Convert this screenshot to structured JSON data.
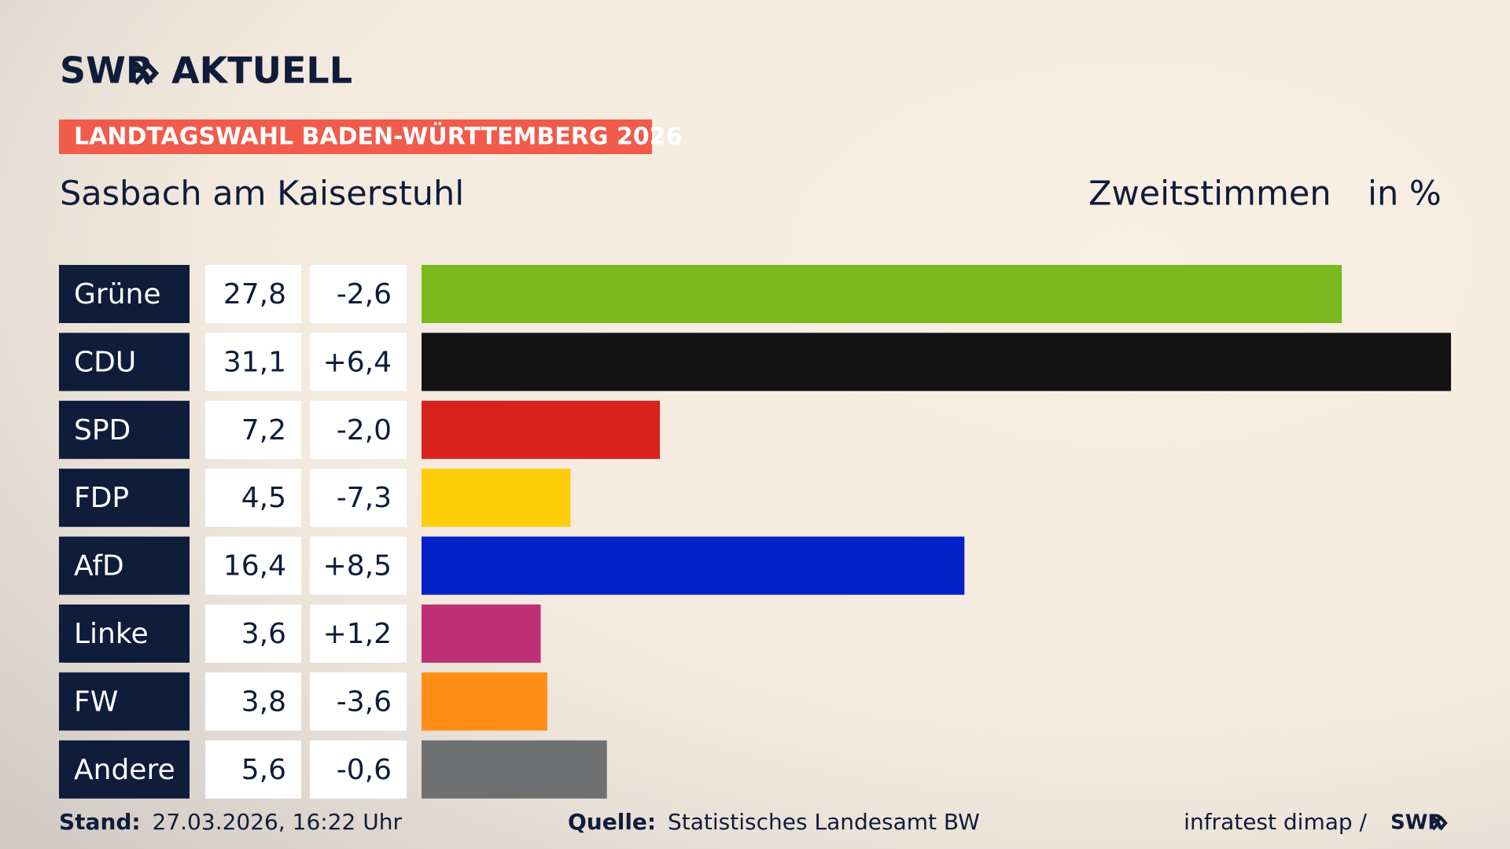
{
  "header": {
    "logo_left": "SWR",
    "logo_right": "AKTUELL",
    "banner": "LANDTAGSWAHL BADEN-WÜRTTEMBERG 2026",
    "location": "Sasbach am Kaiserstuhl"
  },
  "chart_data": {
    "type": "bar",
    "orientation": "horizontal",
    "label": "Zweitstimmen",
    "unit": "in %",
    "categories": [
      "Grüne",
      "CDU",
      "SPD",
      "FDP",
      "AfD",
      "Linke",
      "FW",
      "Andere"
    ],
    "values": [
      27.8,
      31.1,
      7.2,
      4.5,
      16.4,
      3.6,
      3.8,
      5.6
    ],
    "value_labels": [
      "27,8",
      "31,1",
      "7,2",
      "4,5",
      "16,4",
      "3,6",
      "3,8",
      "5,6"
    ],
    "changes": [
      -2.6,
      6.4,
      -2.0,
      -7.3,
      8.5,
      1.2,
      -3.6,
      -0.6
    ],
    "change_labels": [
      "-2,6",
      "+6,4",
      "-2,0",
      "-7,3",
      "+8,5",
      "+1,2",
      "-3,6",
      "-0,6"
    ],
    "colors": [
      "#7aba1e",
      "#121212",
      "#d8211c",
      "#fecd0a",
      "#0020c8",
      "#bd3075",
      "#fd8f18",
      "#6f7071"
    ]
  },
  "footer": {
    "stand_label": "Stand:",
    "stand": "27.03.2026, 16:22 Uhr",
    "source_label": "Quelle:",
    "source": "Statistisches Landesamt BW",
    "credit": "infratest dimap /",
    "credit_brand": "SWR"
  }
}
